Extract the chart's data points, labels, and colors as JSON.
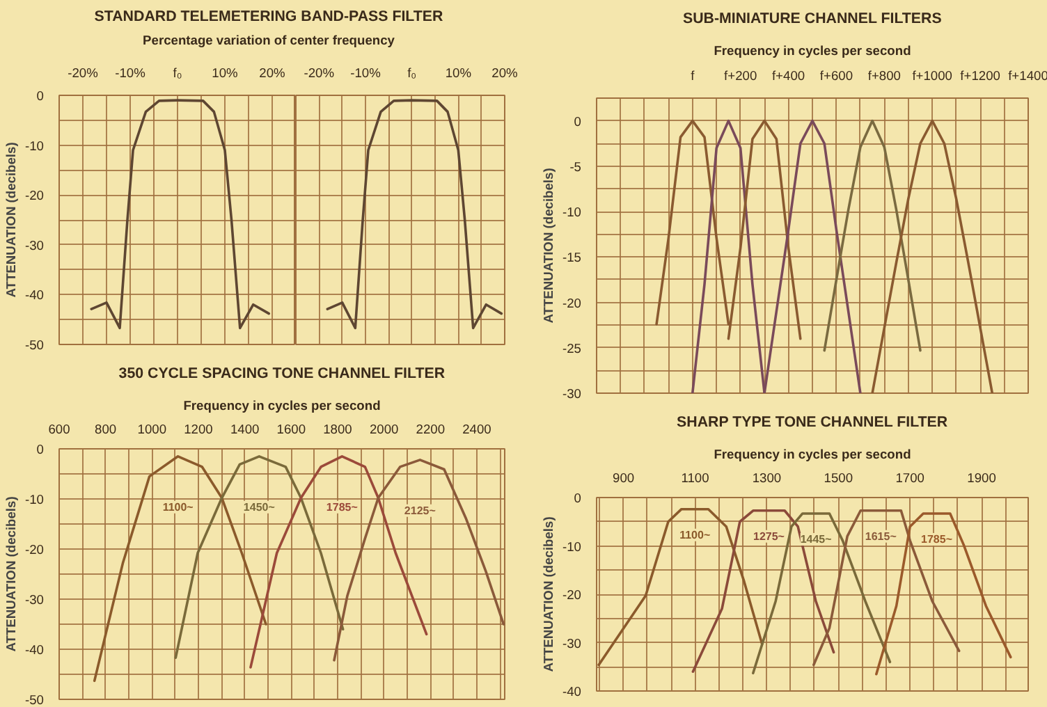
{
  "chart_data": [
    {
      "type": "line",
      "title": "STANDARD TELEMETERING BAND-PASS FILTER",
      "subtitle": "Percentage variation of center frequency",
      "ylabel": "ATTENUATION (decibels)",
      "grid": true,
      "xlim": [
        -25,
        25
      ],
      "ylim": [
        -50,
        0
      ],
      "xticks": [
        {
          "value": -25,
          "label": null
        },
        {
          "value": -20,
          "label": "-20%"
        },
        {
          "value": -15,
          "label": null
        },
        {
          "value": -10,
          "label": "-10%"
        },
        {
          "value": -5,
          "label": null
        },
        {
          "value": 0,
          "label": "f₀"
        },
        {
          "value": 5,
          "label": null
        },
        {
          "value": 10,
          "label": "10%"
        },
        {
          "value": 15,
          "label": null
        },
        {
          "value": 20,
          "label": "20%"
        }
      ],
      "yticks": [
        0,
        {
          "value": -5,
          "label": null
        },
        -10,
        {
          "value": -15,
          "label": null
        },
        -20,
        {
          "value": -25,
          "label": null
        },
        -30,
        {
          "value": -35,
          "label": null
        },
        -40,
        {
          "value": -45,
          "label": null
        },
        -50
      ],
      "series": [
        {
          "color": "#5e4632",
          "x": [
            -18.2,
            -15,
            -12.2,
            -10.6,
            -9.4,
            -6.7,
            -3.9,
            0,
            5.4,
            7.7,
            10,
            11.4,
            13.2,
            16,
            19.3
          ],
          "values": [
            -42.9,
            -41.6,
            -46.7,
            -25.2,
            -11,
            -3.3,
            -1.1,
            -1,
            -1.1,
            -3.3,
            -11,
            -25,
            -46.7,
            -42,
            -43.8
          ]
        }
      ]
    },
    {
      "type": "line",
      "tick_labels": "x",
      "grid": true,
      "xlim": [
        -25,
        20
      ],
      "ylim": [
        -50,
        0
      ],
      "xticks": [
        {
          "value": -20,
          "label": "-20%"
        },
        {
          "value": -15,
          "label": null
        },
        {
          "value": -10,
          "label": "-10%"
        },
        {
          "value": -5,
          "label": null
        },
        {
          "value": 0,
          "label": "f₀"
        },
        {
          "value": 5,
          "label": null
        },
        {
          "value": 10,
          "label": "10%"
        },
        {
          "value": 15,
          "label": null
        },
        {
          "value": 20,
          "label": "20%"
        }
      ],
      "yticks": [
        0,
        {
          "value": -5,
          "label": null
        },
        -10,
        {
          "value": -15,
          "label": null
        },
        -20,
        {
          "value": -25,
          "label": null
        },
        -30,
        {
          "value": -35,
          "label": null
        },
        -40,
        {
          "value": -45,
          "label": null
        },
        -50
      ],
      "series": [
        {
          "color": "#5e4632",
          "x": [
            -18.2,
            -15,
            -12.2,
            -10.6,
            -9.4,
            -6.7,
            -3.9,
            0,
            5.4,
            7.7,
            10,
            11.4,
            13.2,
            16,
            19.3
          ],
          "values": [
            -42.9,
            -41.6,
            -46.7,
            -25.2,
            -11,
            -3.3,
            -1.1,
            -1,
            -1.1,
            -3.3,
            -11,
            -25,
            -46.7,
            -42,
            -43.8
          ]
        }
      ]
    },
    {
      "type": "line",
      "title": "SUB-MINIATURE CHANNEL FILTERS",
      "subtitle": "Frequency in cycles per second",
      "ylabel": "ATTENUATION (decibels)",
      "grid": true,
      "ylim": [
        -30,
        2.5
      ],
      "categories": [
        null,
        null,
        null,
        null,
        null,
        null,
        null,
        null,
        "f",
        null,
        null,
        null,
        "f+200",
        null,
        null,
        null,
        "f+400",
        null,
        null,
        null,
        "f+600",
        null,
        null,
        null,
        "f+800",
        null,
        null,
        null,
        "f+1000",
        null,
        null,
        null,
        "f+1200",
        null,
        null,
        null,
        "f+1400"
      ],
      "yticks": [
        {
          "value": 2.5,
          "label": null
        },
        0,
        {
          "value": -2.5,
          "label": null
        },
        -5,
        {
          "value": -7.5,
          "label": null
        },
        -10,
        {
          "value": -12.5,
          "label": null
        },
        -15,
        {
          "value": -17.5,
          "label": null
        },
        -20,
        {
          "value": -22.5,
          "label": null
        },
        -25,
        {
          "value": -27.5,
          "label": null
        },
        -30
      ],
      "series": [
        {
          "color": "#8a5a30",
          "values": [
            null,
            null,
            null,
            null,
            null,
            -22.4,
            -12.9,
            -1.8,
            0,
            -1.8,
            -12.9,
            -22.4,
            null,
            null,
            null,
            null,
            null,
            null,
            null,
            null,
            null,
            null,
            null,
            null,
            null,
            null,
            null,
            null,
            null,
            null,
            null,
            null,
            null,
            null,
            null,
            null,
            null
          ]
        },
        {
          "color": "#7a4a5a",
          "values": [
            null,
            null,
            null,
            null,
            null,
            null,
            null,
            null,
            -30,
            -18,
            -3,
            0,
            -3,
            -18,
            -30,
            null,
            null,
            null,
            null,
            null,
            null,
            null,
            null,
            null,
            null,
            null,
            null,
            null,
            null,
            null,
            null,
            null,
            null,
            null,
            null,
            null,
            null
          ]
        },
        {
          "color": "#8a5a30",
          "values": [
            null,
            null,
            null,
            null,
            null,
            null,
            null,
            null,
            null,
            null,
            null,
            -24,
            -14,
            -2,
            0,
            -2,
            -14,
            -24,
            null,
            null,
            null,
            null,
            null,
            null,
            null,
            null,
            null,
            null,
            null,
            null,
            null,
            null,
            null,
            null,
            null,
            null,
            null
          ]
        },
        {
          "color": "#7a4a5a",
          "values": [
            null,
            null,
            null,
            null,
            null,
            null,
            null,
            null,
            null,
            null,
            null,
            null,
            null,
            null,
            -30,
            -21,
            -12,
            -2.5,
            0,
            -2.5,
            -12,
            -21,
            -30,
            null,
            null,
            null,
            null,
            null,
            null,
            null,
            null,
            null,
            null,
            null,
            null,
            null,
            null
          ]
        },
        {
          "color": "#7a6a40",
          "values": [
            null,
            null,
            null,
            null,
            null,
            null,
            null,
            null,
            null,
            null,
            null,
            null,
            null,
            null,
            null,
            null,
            null,
            null,
            null,
            -25.3,
            -17.5,
            -9.8,
            -2.9,
            0,
            -2.9,
            -9.8,
            -17.5,
            -25.3,
            null,
            null,
            null,
            null,
            null,
            null,
            null,
            null,
            null
          ]
        },
        {
          "color": "#8a5a30",
          "values": [
            null,
            null,
            null,
            null,
            null,
            null,
            null,
            null,
            null,
            null,
            null,
            null,
            null,
            null,
            null,
            null,
            null,
            null,
            null,
            null,
            null,
            null,
            null,
            -30,
            -22.8,
            -15.6,
            -8.6,
            -2.5,
            0,
            -2.5,
            -8.6,
            -15.6,
            -22.8,
            -30,
            null,
            null,
            null
          ]
        }
      ]
    },
    {
      "type": "line",
      "title": "350 CYCLE SPACING TONE CHANNEL FILTER",
      "subtitle": "Frequency in cycles per second",
      "ylabel": "ATTENUATION (decibels)",
      "grid": true,
      "xlim": [
        600,
        2520
      ],
      "ylim": [
        -50,
        0
      ],
      "xticks": [
        600,
        {
          "value": 700,
          "label": null
        },
        800,
        {
          "value": 900,
          "label": null
        },
        1000,
        {
          "value": 1100,
          "label": null
        },
        1200,
        {
          "value": 1300,
          "label": null
        },
        1400,
        {
          "value": 1500,
          "label": null
        },
        1600,
        {
          "value": 1700,
          "label": null
        },
        1800,
        {
          "value": 1900,
          "label": null
        },
        2000,
        {
          "value": 2100,
          "label": null
        },
        2200,
        {
          "value": 2300,
          "label": null
        },
        2400,
        {
          "value": 2500,
          "label": null
        }
      ],
      "yticks": [
        0,
        {
          "value": -5,
          "label": null
        },
        -10,
        {
          "value": -15,
          "label": null
        },
        -20,
        {
          "value": -25,
          "label": null
        },
        -30,
        {
          "value": -35,
          "label": null
        },
        -40,
        {
          "value": -45,
          "label": null
        },
        -50
      ],
      "series": [
        {
          "name": "1100~",
          "color": "#8b5a2b",
          "x": [
            752,
            875,
            989,
            1112,
            1216,
            1301,
            1387,
            1491
          ],
          "values": [
            -46.3,
            -22.7,
            -5.5,
            -1.5,
            -3.6,
            -9.8,
            -20.8,
            -35
          ]
        },
        {
          "name": "1450~",
          "color": "#7a6a3a",
          "x": [
            1102,
            1197,
            1301,
            1378,
            1462,
            1576,
            1642,
            1728,
            1823
          ],
          "values": [
            -41.7,
            -20.8,
            -9.8,
            -3.1,
            -1.5,
            -3.6,
            -9.8,
            -20.8,
            -36
          ]
        },
        {
          "name": "1785~",
          "color": "#9b4a3a",
          "x": [
            1425,
            1538,
            1642,
            1728,
            1819,
            1918,
            1975,
            2050,
            2183
          ],
          "values": [
            -43.6,
            -20.8,
            -9.8,
            -3.6,
            -1.5,
            -3.6,
            -9.8,
            -20.8,
            -37
          ]
        },
        {
          "name": "2125~",
          "color": "#8b5a3a",
          "x": [
            1785,
            1842,
            1918,
            1975,
            2069,
            2155,
            2259,
            2354,
            2439,
            2515
          ],
          "values": [
            -42.2,
            -29.3,
            -17.9,
            -9.8,
            -3.6,
            -2.2,
            -4.1,
            -14,
            -24.5,
            -35
          ]
        }
      ]
    },
    {
      "type": "line",
      "title": "SHARP TYPE TONE CHANNEL FILTER",
      "subtitle": "Frequency in cycles per second",
      "ylabel": "ATTENUATION (decibels)",
      "grid": true,
      "xlim": [
        825,
        2030
      ],
      "ylim": [
        -40,
        0
      ],
      "xticks": [
        {
          "value": 833.3,
          "label": null
        },
        900,
        {
          "value": 966.7,
          "label": null
        },
        {
          "value": 1033.3,
          "label": null
        },
        1100,
        {
          "value": 1166.7,
          "label": null
        },
        {
          "value": 1233.3,
          "label": null
        },
        1300,
        {
          "value": 1366.7,
          "label": null
        },
        {
          "value": 1433.3,
          "label": null
        },
        1500,
        {
          "value": 1566.7,
          "label": null
        },
        {
          "value": 1633.3,
          "label": null
        },
        1700,
        {
          "value": 1766.7,
          "label": null
        },
        {
          "value": 1833.3,
          "label": null
        },
        1900,
        {
          "value": 1966.7,
          "label": null
        }
      ],
      "yticks": [
        0,
        {
          "value": -5,
          "label": null
        },
        -10,
        {
          "value": -15,
          "label": null
        },
        -20,
        {
          "value": -25,
          "label": null
        },
        -30,
        {
          "value": -35,
          "label": null
        },
        -40
      ],
      "series": [
        {
          "name": "1100~",
          "color": "#8b5a2b",
          "x": [
            831,
            962,
            1025,
            1062,
            1137,
            1187,
            1237,
            1287
          ],
          "values": [
            -34.6,
            -20.3,
            -5,
            -2.4,
            -2.4,
            -6,
            -17.4,
            -30.3
          ]
        },
        {
          "name": "1275~",
          "color": "#8b4a3a",
          "x": [
            1094,
            1175,
            1225,
            1262,
            1350,
            1387,
            1437,
            1487
          ],
          "values": [
            -36,
            -23,
            -5,
            -2.7,
            -2.7,
            -6,
            -21.4,
            -32
          ]
        },
        {
          "name": "1445~",
          "color": "#7a6a3a",
          "x": [
            1262,
            1325,
            1369,
            1400,
            1475,
            1512,
            1575,
            1644
          ],
          "values": [
            -36.3,
            -21.4,
            -6,
            -3.3,
            -3.3,
            -8.9,
            -21.4,
            -34
          ]
        },
        {
          "name": "1615~",
          "color": "#8b5a3a",
          "x": [
            1431,
            1475,
            1525,
            1562,
            1675,
            1700,
            1762,
            1837
          ],
          "values": [
            -34.6,
            -27,
            -8,
            -2.7,
            -2.7,
            -8.9,
            -21.4,
            -31.7
          ]
        },
        {
          "name": "1785~",
          "color": "#9b5a2b",
          "x": [
            1606,
            1662,
            1700,
            1737,
            1812,
            1850,
            1912,
            1981
          ],
          "values": [
            -36.5,
            -22.4,
            -6,
            -3.3,
            -3.3,
            -9.8,
            -22.4,
            -33
          ]
        }
      ]
    }
  ]
}
